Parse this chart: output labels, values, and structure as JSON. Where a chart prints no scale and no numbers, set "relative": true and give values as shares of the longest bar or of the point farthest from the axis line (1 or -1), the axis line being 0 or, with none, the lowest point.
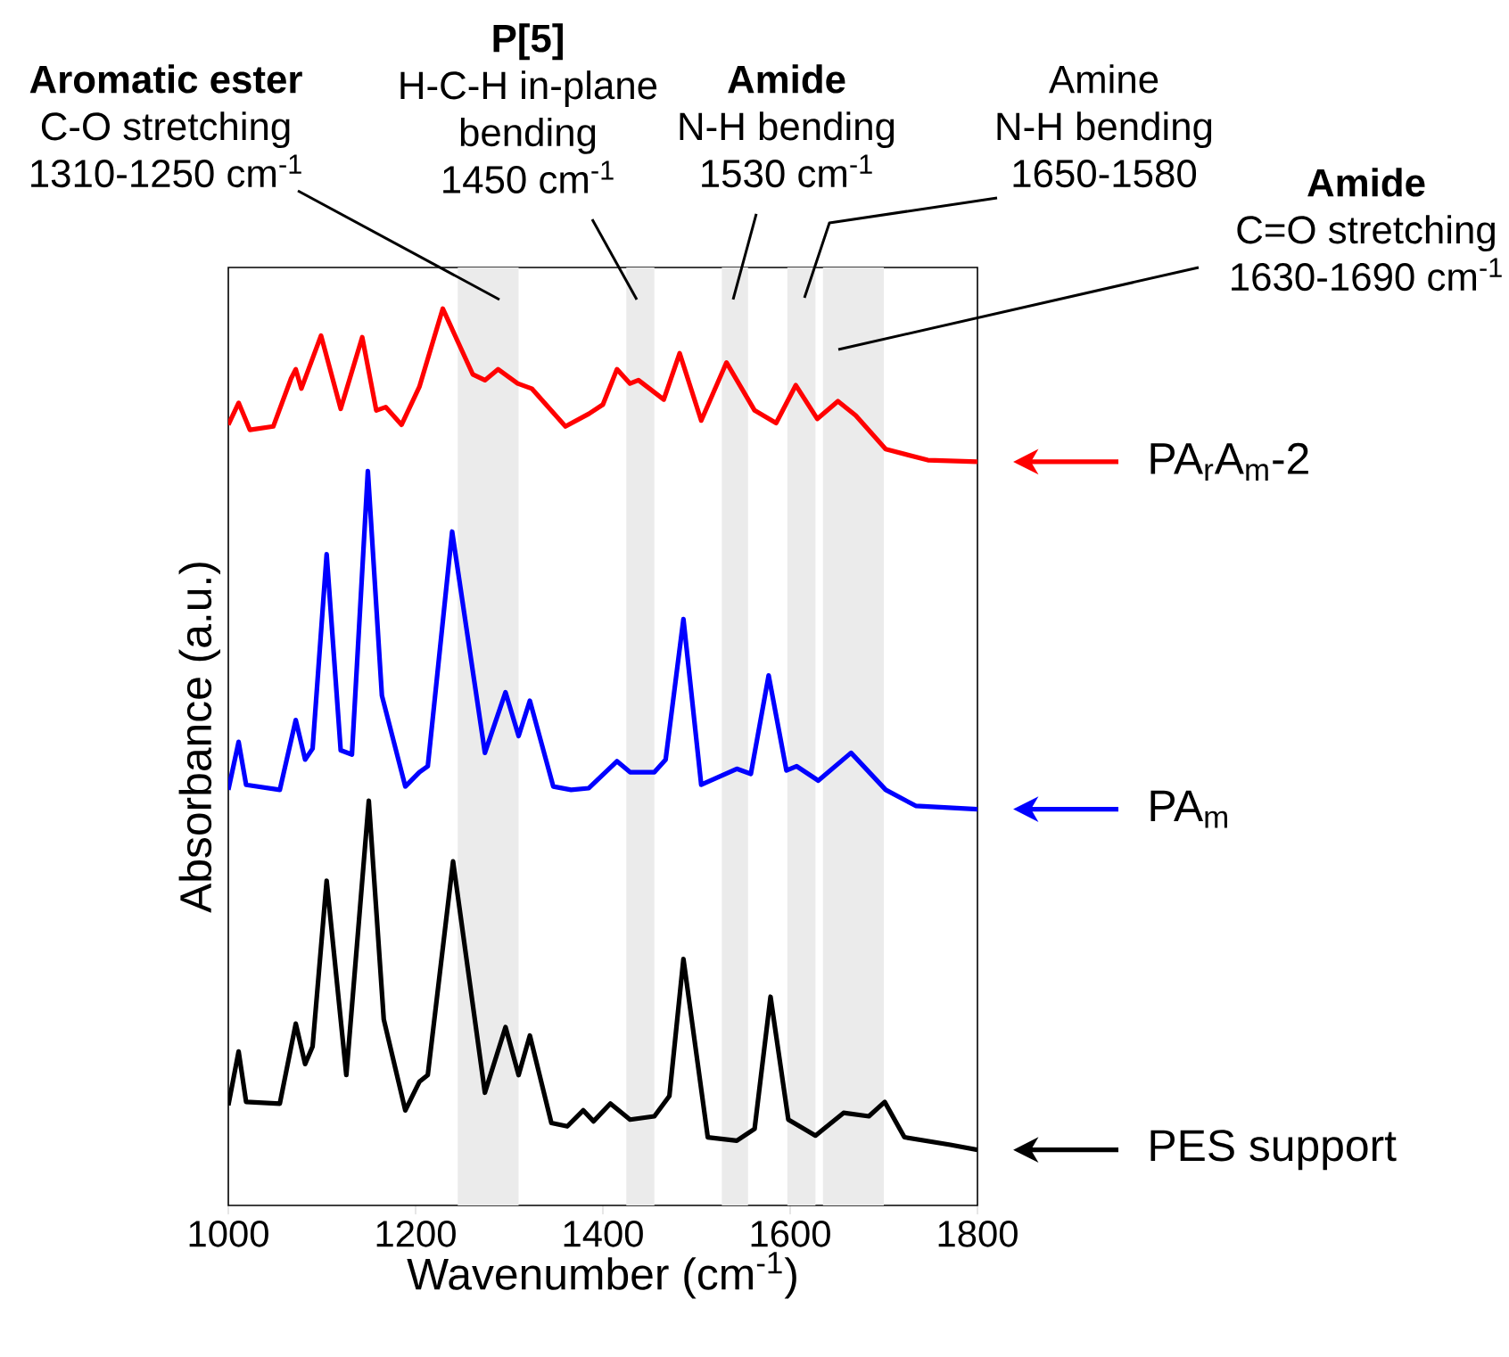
{
  "chart_data": {
    "type": "line",
    "relative": true,
    "legend": "right",
    "xlabel": "Wavenumber (cm$^{-1}$)",
    "ylabel": "Absorbance (a.u.)",
    "xlim": [
      1000,
      1800
    ],
    "xticks": [
      1000,
      1200,
      1400,
      1600,
      1800
    ],
    "series": [
      {
        "name": "PA$_{r}$A$_{m}$-2",
        "color": "#ff0000",
        "x": [
          1000,
          1011,
          1023,
          1048,
          1067,
          1072,
          1078,
          1099,
          1120,
          1143,
          1158,
          1168,
          1185,
          1204,
          1229,
          1261,
          1274,
          1288,
          1309,
          1324,
          1360,
          1385,
          1400,
          1415,
          1429,
          1438,
          1465,
          1482,
          1505,
          1532,
          1562,
          1585,
          1606,
          1629,
          1651,
          1670,
          1702,
          1747,
          1800
        ],
        "values": [
          0.862,
          0.888,
          0.856,
          0.86,
          0.917,
          0.928,
          0.905,
          0.968,
          0.881,
          0.966,
          0.879,
          0.883,
          0.862,
          0.907,
          1,
          0.922,
          0.915,
          0.928,
          0.911,
          0.905,
          0.86,
          0.875,
          0.886,
          0.928,
          0.911,
          0.915,
          0.892,
          0.947,
          0.867,
          0.936,
          0.879,
          0.864,
          0.909,
          0.869,
          0.89,
          0.873,
          0.833,
          0.82,
          0.818
        ]
      },
      {
        "name": "PA$_{m}$",
        "color": "#0000ff",
        "x": [
          1000,
          1011,
          1019,
          1055,
          1072,
          1082,
          1090,
          1105,
          1120,
          1132,
          1149,
          1164,
          1189,
          1204,
          1213,
          1239,
          1274,
          1296,
          1310,
          1322,
          1347,
          1366,
          1385,
          1415,
          1429,
          1455,
          1467,
          1486,
          1505,
          1543,
          1558,
          1577,
          1596,
          1607,
          1630,
          1665,
          1702,
          1734,
          1800
        ],
        "values": [
          0.428,
          0.485,
          0.434,
          0.428,
          0.511,
          0.464,
          0.477,
          0.708,
          0.475,
          0.47,
          0.807,
          0.54,
          0.432,
          0.449,
          0.456,
          0.735,
          0.472,
          0.544,
          0.492,
          0.534,
          0.432,
          0.428,
          0.43,
          0.462,
          0.449,
          0.449,
          0.464,
          0.631,
          0.434,
          0.453,
          0.447,
          0.564,
          0.451,
          0.456,
          0.439,
          0.472,
          0.428,
          0.409,
          0.405
        ]
      },
      {
        "name": "PES support",
        "color": "#000000",
        "x": [
          1000,
          1011,
          1019,
          1055,
          1072,
          1082,
          1090,
          1105,
          1126,
          1150,
          1166,
          1189,
          1204,
          1213,
          1240,
          1274,
          1296,
          1310,
          1322,
          1345,
          1362,
          1379,
          1390,
          1408,
          1429,
          1455,
          1471,
          1486,
          1512,
          1543,
          1562,
          1579,
          1598,
          1627,
          1657,
          1684,
          1701,
          1722,
          1771,
          1800
        ],
        "values": [
          0.053,
          0.117,
          0.057,
          0.055,
          0.15,
          0.102,
          0.123,
          0.32,
          0.089,
          0.415,
          0.155,
          0.047,
          0.081,
          0.089,
          0.343,
          0.068,
          0.146,
          0.089,
          0.136,
          0.032,
          0.028,
          0.047,
          0.034,
          0.055,
          0.036,
          0.04,
          0.064,
          0.227,
          0.015,
          0.011,
          0.025,
          0.182,
          0.036,
          0.017,
          0.044,
          0.04,
          0.057,
          0.015,
          0.006,
          0
        ]
      }
    ],
    "bands": [
      {
        "axis": "x",
        "from": 1245,
        "to": 1310,
        "color": "#ebebeb",
        "label": "**Aromatic ester** C-O stretching 1310-1250 cm$^{-1}$"
      },
      {
        "axis": "x",
        "from": 1425,
        "to": 1455,
        "color": "#ebebeb",
        "label": "**P[5]** H-C-H in-plane bending 1450 cm$^{-1}$"
      },
      {
        "axis": "x",
        "from": 1527,
        "to": 1555,
        "color": "#ebebeb",
        "label": "**Amide** N-H bending 1530 cm$^{-1}$"
      },
      {
        "axis": "x",
        "from": 1597,
        "to": 1627,
        "color": "#ebebeb",
        "label": "Amine N-H bending 1650-1580"
      },
      {
        "axis": "x",
        "from": 1635,
        "to": 1700,
        "color": "#ebebeb",
        "label": "**Amide** C=O stretching 1630-1690 cm$^{-1}$"
      }
    ]
  }
}
